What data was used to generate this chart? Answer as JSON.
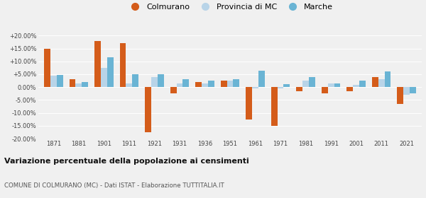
{
  "years": [
    1871,
    1881,
    1901,
    1911,
    1921,
    1931,
    1936,
    1951,
    1961,
    1971,
    1981,
    1991,
    2001,
    2011,
    2021
  ],
  "colmurano": [
    14.8,
    3.0,
    18.0,
    17.2,
    -17.5,
    -2.5,
    2.0,
    2.5,
    -12.5,
    -15.0,
    -1.5,
    -2.5,
    -1.5,
    4.0,
    -6.5
  ],
  "provincia_mc": [
    4.5,
    1.5,
    7.5,
    1.5,
    4.0,
    1.5,
    1.5,
    2.5,
    -0.5,
    -0.5,
    2.5,
    1.5,
    1.0,
    3.0,
    -3.0
  ],
  "marche": [
    4.8,
    2.0,
    11.5,
    5.0,
    5.0,
    3.2,
    2.5,
    3.0,
    6.5,
    1.2,
    3.8,
    1.5,
    2.5,
    6.0,
    -2.5
  ],
  "color_colmurano": "#d45c1a",
  "color_provincia": "#b8d4e8",
  "color_marche": "#6ab4d4",
  "title": "Variazione percentuale della popolazione ai censimenti",
  "subtitle": "COMUNE DI COLMURANO (MC) - Dati ISTAT - Elaborazione TUTTITALIA.IT",
  "ylim": [
    -20.0,
    20.0
  ],
  "yticks": [
    -20.0,
    -15.0,
    -10.0,
    -5.0,
    0.0,
    5.0,
    10.0,
    15.0,
    20.0
  ],
  "ytick_labels": [
    "-20.00%",
    "-15.00%",
    "-10.00%",
    "-5.00%",
    "0.00%",
    "+5.00%",
    "+10.00%",
    "+15.00%",
    "+20.00%"
  ],
  "legend_labels": [
    "Colmurano",
    "Provincia di MC",
    "Marche"
  ],
  "bg_color": "#f0f0f0"
}
